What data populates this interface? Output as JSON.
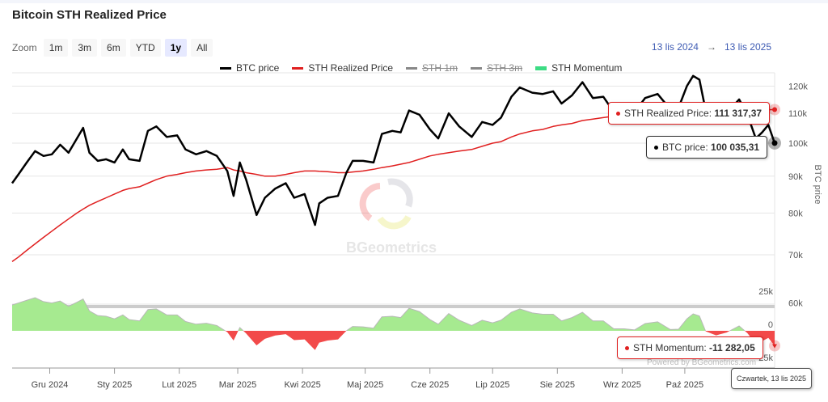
{
  "header": {
    "title": "Bitcoin STH Realized Price"
  },
  "zoom": {
    "label": "Zoom",
    "buttons": [
      "1m",
      "3m",
      "6m",
      "YTD",
      "1y",
      "All"
    ],
    "active": "1y"
  },
  "range": {
    "from": "13 lis 2024",
    "arrow": "→",
    "to": "13 lis 2025"
  },
  "legend": [
    {
      "label": "BTC price",
      "color": "#000000",
      "visible": true
    },
    {
      "label": "STH Realized Price",
      "color": "#e02020",
      "visible": true
    },
    {
      "label": "STH 1m",
      "color": "#888888",
      "visible": false
    },
    {
      "label": "STH 3m",
      "color": "#888888",
      "visible": false
    },
    {
      "label": "STH Momentum",
      "color": "#3ddc84",
      "visible": true
    }
  ],
  "tooltips": {
    "sth": {
      "label": "STH Realized Price: ",
      "value": "111 317,37"
    },
    "btc": {
      "label": "BTC price: ",
      "value": "100 035,31"
    },
    "momentum": {
      "label": "STH Momentum: ",
      "value": "-11 282,05"
    },
    "date": "Czwartek, 13 lis 2025"
  },
  "watermark": "BGeometrics",
  "credits": "Powered by BGeometrics.com",
  "chart_data": {
    "type": "line",
    "title": "Bitcoin STH Realized Price",
    "ylabel": "BTC price",
    "yscale": "log",
    "y_ticks": [
      {
        "v": 60000,
        "label": "60k"
      },
      {
        "v": 70000,
        "label": "70k"
      },
      {
        "v": 80000,
        "label": "80k"
      },
      {
        "v": 90000,
        "label": "90k"
      },
      {
        "v": 100000,
        "label": "100k"
      },
      {
        "v": 110000,
        "label": "110k"
      },
      {
        "v": 120000,
        "label": "120k"
      }
    ],
    "momentum_ticks": [
      {
        "v": 25000,
        "label": "25k"
      },
      {
        "v": 0,
        "label": "0"
      },
      {
        "v": -25000,
        "label": "-25k"
      }
    ],
    "x_range": [
      "2024-11-13",
      "2025-11-13"
    ],
    "x_ticks": [
      {
        "d": "2024-12-01",
        "label": "Gru 2024"
      },
      {
        "d": "2025-01-01",
        "label": "Sty 2025"
      },
      {
        "d": "2025-02-01",
        "label": "Lut 2025"
      },
      {
        "d": "2025-03-01",
        "label": "Mar 2025"
      },
      {
        "d": "2025-04-01",
        "label": "Kwi 2025"
      },
      {
        "d": "2025-05-01",
        "label": "Maj 2025"
      },
      {
        "d": "2025-06-01",
        "label": "Cze 2025"
      },
      {
        "d": "2025-07-01",
        "label": "Lip 2025"
      },
      {
        "d": "2025-08-01",
        "label": "Sie 2025"
      },
      {
        "d": "2025-09-01",
        "label": "Wrz 2025"
      },
      {
        "d": "2025-10-01",
        "label": "Paź 2025"
      }
    ],
    "columns": [
      "date",
      "btc_price",
      "sth_realized_price"
    ],
    "momentum_definition": "btc_price - sth_realized_price",
    "rows": [
      [
        "2024-11-13",
        88000,
        68500
      ],
      [
        "2024-11-16",
        90500,
        69500
      ],
      [
        "2024-11-20",
        94000,
        71000
      ],
      [
        "2024-11-24",
        97500,
        72500
      ],
      [
        "2024-11-28",
        96000,
        74000
      ],
      [
        "2024-12-02",
        96500,
        75500
      ],
      [
        "2024-12-06",
        99500,
        77000
      ],
      [
        "2024-12-10",
        97000,
        78500
      ],
      [
        "2024-12-14",
        101500,
        80000
      ],
      [
        "2024-12-17",
        105000,
        81000
      ],
      [
        "2024-12-20",
        97000,
        82000
      ],
      [
        "2024-12-24",
        94500,
        83000
      ],
      [
        "2024-12-28",
        95000,
        84000
      ],
      [
        "2025-01-01",
        94000,
        85000
      ],
      [
        "2025-01-05",
        98000,
        86000
      ],
      [
        "2025-01-08",
        95000,
        86500
      ],
      [
        "2025-01-13",
        94500,
        87000
      ],
      [
        "2025-01-17",
        104000,
        88000
      ],
      [
        "2025-01-21",
        105500,
        89000
      ],
      [
        "2025-01-26",
        102000,
        90000
      ],
      [
        "2025-01-31",
        102500,
        90500
      ],
      [
        "2025-02-04",
        98000,
        91000
      ],
      [
        "2025-02-09",
        96500,
        91500
      ],
      [
        "2025-02-14",
        97500,
        91800
      ],
      [
        "2025-02-19",
        96000,
        92000
      ],
      [
        "2025-02-24",
        91500,
        92500
      ],
      [
        "2025-02-27",
        84500,
        91800
      ],
      [
        "2025-03-02",
        94000,
        91500
      ],
      [
        "2025-03-05",
        89000,
        91000
      ],
      [
        "2025-03-10",
        79500,
        90500
      ],
      [
        "2025-03-14",
        84000,
        90000
      ],
      [
        "2025-03-19",
        86500,
        90000
      ],
      [
        "2025-03-24",
        88000,
        90500
      ],
      [
        "2025-03-28",
        84000,
        91000
      ],
      [
        "2025-04-02",
        85000,
        91500
      ],
      [
        "2025-04-07",
        77000,
        91500
      ],
      [
        "2025-04-09",
        82500,
        91400
      ],
      [
        "2025-04-13",
        84000,
        91300
      ],
      [
        "2025-04-18",
        84500,
        91000
      ],
      [
        "2025-04-22",
        91000,
        91000
      ],
      [
        "2025-04-25",
        94500,
        91200
      ],
      [
        "2025-04-30",
        94500,
        91500
      ],
      [
        "2025-05-05",
        94000,
        92000
      ],
      [
        "2025-05-09",
        103000,
        92500
      ],
      [
        "2025-05-14",
        104000,
        93000
      ],
      [
        "2025-05-18",
        103500,
        93500
      ],
      [
        "2025-05-22",
        111000,
        94000
      ],
      [
        "2025-05-27",
        109500,
        95000
      ],
      [
        "2025-06-01",
        104500,
        96000
      ],
      [
        "2025-06-05",
        101500,
        96500
      ],
      [
        "2025-06-10",
        110000,
        97000
      ],
      [
        "2025-06-15",
        105500,
        97500
      ],
      [
        "2025-06-21",
        102000,
        98000
      ],
      [
        "2025-06-26",
        107000,
        99000
      ],
      [
        "2025-07-01",
        106000,
        100000
      ],
      [
        "2025-07-05",
        108500,
        100500
      ],
      [
        "2025-07-10",
        116000,
        102000
      ],
      [
        "2025-07-14",
        119500,
        103000
      ],
      [
        "2025-07-20",
        117500,
        104000
      ],
      [
        "2025-07-25",
        117000,
        104500
      ],
      [
        "2025-07-30",
        118000,
        105500
      ],
      [
        "2025-08-03",
        113500,
        106000
      ],
      [
        "2025-08-08",
        116500,
        106500
      ],
      [
        "2025-08-13",
        121500,
        107500
      ],
      [
        "2025-08-18",
        115500,
        108000
      ],
      [
        "2025-08-23",
        116000,
        108500
      ],
      [
        "2025-08-28",
        110500,
        109000
      ],
      [
        "2025-09-02",
        111000,
        109500
      ],
      [
        "2025-09-07",
        110500,
        109800
      ],
      [
        "2025-09-12",
        115500,
        110000
      ],
      [
        "2025-09-18",
        117000,
        110200
      ],
      [
        "2025-09-24",
        111500,
        110500
      ],
      [
        "2025-09-28",
        112000,
        110800
      ],
      [
        "2025-10-02",
        120000,
        111000
      ],
      [
        "2025-10-05",
        124000,
        111200
      ],
      [
        "2025-10-08",
        122500,
        111300
      ],
      [
        "2025-10-11",
        111000,
        111400
      ],
      [
        "2025-10-16",
        108000,
        111400
      ],
      [
        "2025-10-21",
        110000,
        111300
      ],
      [
        "2025-10-27",
        115000,
        111300
      ],
      [
        "2025-10-31",
        109500,
        111300
      ],
      [
        "2025-11-04",
        101500,
        111300
      ],
      [
        "2025-11-07",
        103500,
        111300
      ],
      [
        "2025-11-10",
        106000,
        111300
      ],
      [
        "2025-11-13",
        100035.31,
        111317.37
      ]
    ]
  }
}
